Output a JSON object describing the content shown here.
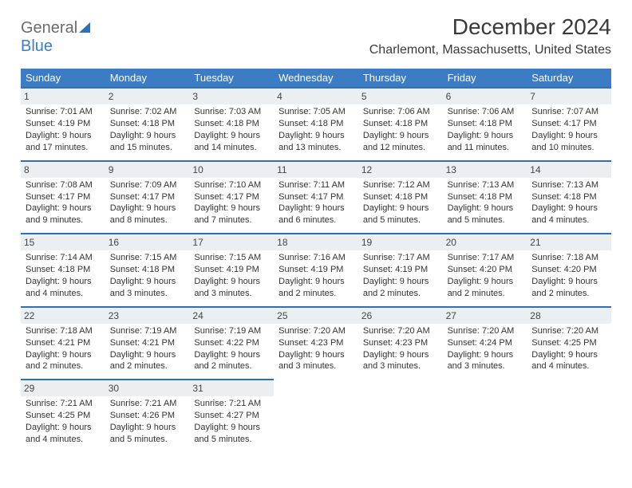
{
  "logo": {
    "part1": "General",
    "part2": "Blue"
  },
  "title": "December 2024",
  "location": "Charlemont, Massachusetts, United States",
  "colors": {
    "header_bg": "#3b7cc4",
    "header_text": "#ffffff",
    "rule": "#2f6fb3",
    "daynum_bg": "#eceff1",
    "body_text": "#333333",
    "logo_gray": "#6b6b6b",
    "logo_blue": "#3b7cc4",
    "page_bg": "#ffffff"
  },
  "fonts": {
    "title_size_pt": 21,
    "location_size_pt": 12,
    "dow_size_pt": 10,
    "cell_size_pt": 8,
    "family": "Arial"
  },
  "dow": [
    "Sunday",
    "Monday",
    "Tuesday",
    "Wednesday",
    "Thursday",
    "Friday",
    "Saturday"
  ],
  "days": [
    {
      "n": 1,
      "sunrise": "7:01 AM",
      "sunset": "4:19 PM",
      "daylight": "9 hours and 17 minutes."
    },
    {
      "n": 2,
      "sunrise": "7:02 AM",
      "sunset": "4:18 PM",
      "daylight": "9 hours and 15 minutes."
    },
    {
      "n": 3,
      "sunrise": "7:03 AM",
      "sunset": "4:18 PM",
      "daylight": "9 hours and 14 minutes."
    },
    {
      "n": 4,
      "sunrise": "7:05 AM",
      "sunset": "4:18 PM",
      "daylight": "9 hours and 13 minutes."
    },
    {
      "n": 5,
      "sunrise": "7:06 AM",
      "sunset": "4:18 PM",
      "daylight": "9 hours and 12 minutes."
    },
    {
      "n": 6,
      "sunrise": "7:06 AM",
      "sunset": "4:18 PM",
      "daylight": "9 hours and 11 minutes."
    },
    {
      "n": 7,
      "sunrise": "7:07 AM",
      "sunset": "4:17 PM",
      "daylight": "9 hours and 10 minutes."
    },
    {
      "n": 8,
      "sunrise": "7:08 AM",
      "sunset": "4:17 PM",
      "daylight": "9 hours and 9 minutes."
    },
    {
      "n": 9,
      "sunrise": "7:09 AM",
      "sunset": "4:17 PM",
      "daylight": "9 hours and 8 minutes."
    },
    {
      "n": 10,
      "sunrise": "7:10 AM",
      "sunset": "4:17 PM",
      "daylight": "9 hours and 7 minutes."
    },
    {
      "n": 11,
      "sunrise": "7:11 AM",
      "sunset": "4:17 PM",
      "daylight": "9 hours and 6 minutes."
    },
    {
      "n": 12,
      "sunrise": "7:12 AM",
      "sunset": "4:18 PM",
      "daylight": "9 hours and 5 minutes."
    },
    {
      "n": 13,
      "sunrise": "7:13 AM",
      "sunset": "4:18 PM",
      "daylight": "9 hours and 5 minutes."
    },
    {
      "n": 14,
      "sunrise": "7:13 AM",
      "sunset": "4:18 PM",
      "daylight": "9 hours and 4 minutes."
    },
    {
      "n": 15,
      "sunrise": "7:14 AM",
      "sunset": "4:18 PM",
      "daylight": "9 hours and 4 minutes."
    },
    {
      "n": 16,
      "sunrise": "7:15 AM",
      "sunset": "4:18 PM",
      "daylight": "9 hours and 3 minutes."
    },
    {
      "n": 17,
      "sunrise": "7:15 AM",
      "sunset": "4:19 PM",
      "daylight": "9 hours and 3 minutes."
    },
    {
      "n": 18,
      "sunrise": "7:16 AM",
      "sunset": "4:19 PM",
      "daylight": "9 hours and 2 minutes."
    },
    {
      "n": 19,
      "sunrise": "7:17 AM",
      "sunset": "4:19 PM",
      "daylight": "9 hours and 2 minutes."
    },
    {
      "n": 20,
      "sunrise": "7:17 AM",
      "sunset": "4:20 PM",
      "daylight": "9 hours and 2 minutes."
    },
    {
      "n": 21,
      "sunrise": "7:18 AM",
      "sunset": "4:20 PM",
      "daylight": "9 hours and 2 minutes."
    },
    {
      "n": 22,
      "sunrise": "7:18 AM",
      "sunset": "4:21 PM",
      "daylight": "9 hours and 2 minutes."
    },
    {
      "n": 23,
      "sunrise": "7:19 AM",
      "sunset": "4:21 PM",
      "daylight": "9 hours and 2 minutes."
    },
    {
      "n": 24,
      "sunrise": "7:19 AM",
      "sunset": "4:22 PM",
      "daylight": "9 hours and 2 minutes."
    },
    {
      "n": 25,
      "sunrise": "7:20 AM",
      "sunset": "4:23 PM",
      "daylight": "9 hours and 3 minutes."
    },
    {
      "n": 26,
      "sunrise": "7:20 AM",
      "sunset": "4:23 PM",
      "daylight": "9 hours and 3 minutes."
    },
    {
      "n": 27,
      "sunrise": "7:20 AM",
      "sunset": "4:24 PM",
      "daylight": "9 hours and 3 minutes."
    },
    {
      "n": 28,
      "sunrise": "7:20 AM",
      "sunset": "4:25 PM",
      "daylight": "9 hours and 4 minutes."
    },
    {
      "n": 29,
      "sunrise": "7:21 AM",
      "sunset": "4:25 PM",
      "daylight": "9 hours and 4 minutes."
    },
    {
      "n": 30,
      "sunrise": "7:21 AM",
      "sunset": "4:26 PM",
      "daylight": "9 hours and 5 minutes."
    },
    {
      "n": 31,
      "sunrise": "7:21 AM",
      "sunset": "4:27 PM",
      "daylight": "9 hours and 5 minutes."
    }
  ],
  "labels": {
    "sunrise_prefix": "Sunrise: ",
    "sunset_prefix": "Sunset: ",
    "daylight_prefix": "Daylight: "
  },
  "start_weekday": 0,
  "trailing_empty": 4
}
